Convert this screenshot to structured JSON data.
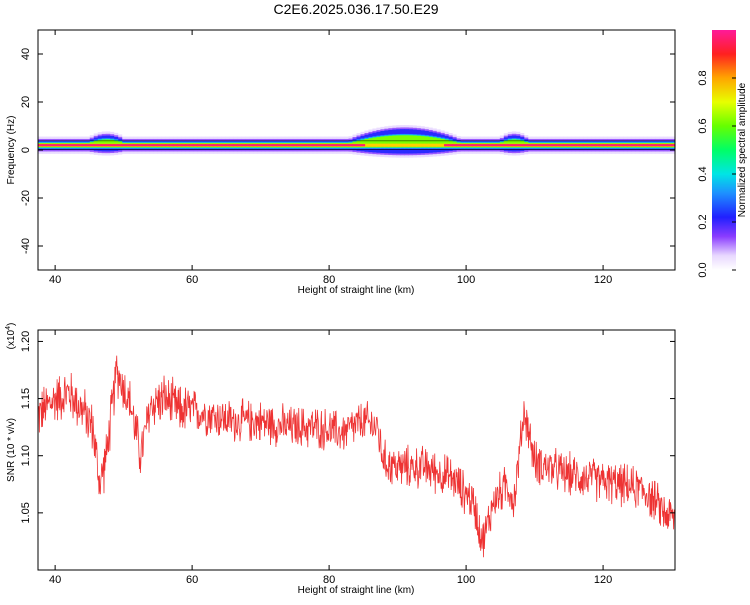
{
  "title": "C2E6.2025.036.17.50.E29",
  "colors": {
    "snr_line": "#ee3333",
    "axis": "#000000",
    "background": "#ffffff"
  },
  "chart_data": [
    {
      "type": "heatmap",
      "xlabel": "Height of straight line (km)",
      "ylabel": "Frequency (Hz)",
      "xlim": [
        37.5,
        130.5
      ],
      "ylim": [
        -50,
        50
      ],
      "x_ticks": [
        "40",
        "60",
        "80",
        "100",
        "120"
      ],
      "y_ticks": [
        "40",
        "20",
        "0",
        "-20",
        "-40"
      ],
      "colorbar": {
        "label": "Normalized spectral amplitude",
        "range": [
          0,
          1
        ],
        "ticks": [
          "0.0",
          "0.2",
          "0.4",
          "0.6",
          "0.8"
        ]
      },
      "band": {
        "center_hz": 2,
        "broadening_regions": [
          {
            "x_range": [
              83,
              99
            ],
            "peak_hz": 5,
            "strength": "strong"
          },
          {
            "x_range": [
              45,
              50
            ],
            "peak_hz": 3,
            "strength": "weak"
          },
          {
            "x_range": [
              105,
              109
            ],
            "peak_hz": 3,
            "strength": "weak"
          }
        ]
      }
    },
    {
      "type": "line",
      "xlabel": "Height of straight line (km)",
      "ylabel": "SNR (10 * v/v)",
      "y_multiplier": "(x10",
      "y_multiplier_exp": "4",
      "y_multiplier_close": ")",
      "xlim": [
        37.5,
        130.5
      ],
      "ylim": [
        1.0,
        1.21
      ],
      "x_ticks": [
        "40",
        "60",
        "80",
        "100",
        "120"
      ],
      "y_ticks": [
        "1.20",
        "1.15",
        "1.10",
        "1.05"
      ],
      "series": [
        {
          "x": [
            37.5,
            40,
            42,
            44,
            45.5,
            46.5,
            47.5,
            49,
            51,
            52.5,
            54,
            56,
            58,
            60,
            63,
            66,
            70,
            74,
            78,
            82,
            85,
            87,
            88,
            90,
            94,
            98,
            101,
            102.5,
            104,
            106,
            107,
            108.5,
            110,
            114,
            118,
            122,
            126,
            129,
            130.5
          ],
          "values": [
            1.135,
            1.15,
            1.155,
            1.14,
            1.125,
            1.075,
            1.1,
            1.175,
            1.145,
            1.1,
            1.145,
            1.15,
            1.14,
            1.14,
            1.135,
            1.13,
            1.13,
            1.125,
            1.125,
            1.12,
            1.13,
            1.125,
            1.095,
            1.09,
            1.09,
            1.08,
            1.06,
            1.025,
            1.06,
            1.075,
            1.06,
            1.14,
            1.095,
            1.085,
            1.08,
            1.075,
            1.07,
            1.05,
            1.045
          ]
        }
      ]
    }
  ]
}
